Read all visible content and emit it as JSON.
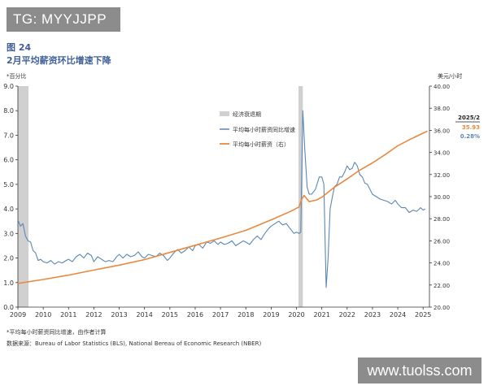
{
  "header": {
    "watermark_top": "TG: MYYJJPP",
    "figure_number": "图 24",
    "figure_title": "2月平均薪资环比增速下降"
  },
  "footer": {
    "footnote": "*平均每小时薪资同比增速，由作者计算",
    "source": "数据来源：Bureau of Labor Statistics (BLS), National Bereau of Economic Research (NBER)",
    "watermark_bottom": "www.tuolss.com"
  },
  "chart_data": {
    "type": "line",
    "left_axis_label": "*百分比",
    "right_axis_label": "美元/小时",
    "left_ylim": [
      0.0,
      9.0
    ],
    "left_ticks": [
      "0.0",
      "1.0",
      "2.0",
      "3.0",
      "4.0",
      "5.0",
      "6.0",
      "7.0",
      "8.0",
      "9.0"
    ],
    "right_ylim": [
      20.0,
      40.0
    ],
    "right_ticks": [
      "20.00",
      "22.00",
      "24.00",
      "26.00",
      "28.00",
      "30.00",
      "32.00",
      "34.00",
      "36.00",
      "38.00",
      "40.00"
    ],
    "xlim": [
      2009.0,
      2025.25
    ],
    "x_ticks": [
      "2009",
      "2010",
      "2011",
      "2012",
      "2013",
      "2014",
      "2015",
      "2016",
      "2017",
      "2018",
      "2019",
      "2020",
      "2021",
      "2022",
      "2023",
      "2024",
      "2025"
    ],
    "recessions": [
      [
        2009.0,
        2009.42
      ],
      [
        2020.08,
        2020.25
      ]
    ],
    "legend": {
      "position": "top-right",
      "items": [
        "经济衰退期",
        "平均每小时薪资同比增速",
        "平均每小时薪资（右）"
      ]
    },
    "series": [
      {
        "name": "平均每小时薪资同比增速",
        "axis": "left",
        "color": "#5b87b5",
        "x": [
          2009.0,
          2009.1,
          2009.2,
          2009.3,
          2009.4,
          2009.5,
          2009.6,
          2009.7,
          2009.8,
          2009.9,
          2010.0,
          2010.15,
          2010.3,
          2010.45,
          2010.6,
          2010.75,
          2010.9,
          2011.0,
          2011.15,
          2011.3,
          2011.45,
          2011.6,
          2011.75,
          2011.9,
          2012.0,
          2012.15,
          2012.3,
          2012.45,
          2012.6,
          2012.75,
          2012.9,
          2013.0,
          2013.15,
          2013.3,
          2013.45,
          2013.6,
          2013.75,
          2013.9,
          2014.0,
          2014.15,
          2014.3,
          2014.45,
          2014.6,
          2014.75,
          2014.9,
          2015.0,
          2015.15,
          2015.3,
          2015.45,
          2015.6,
          2015.75,
          2015.9,
          2016.0,
          2016.15,
          2016.3,
          2016.45,
          2016.6,
          2016.75,
          2016.9,
          2017.0,
          2017.15,
          2017.3,
          2017.45,
          2017.6,
          2017.75,
          2017.9,
          2018.0,
          2018.15,
          2018.3,
          2018.45,
          2018.6,
          2018.75,
          2018.9,
          2019.0,
          2019.15,
          2019.3,
          2019.45,
          2019.6,
          2019.75,
          2019.9,
          2020.0,
          2020.1,
          2020.17,
          2020.25,
          2020.33,
          2020.42,
          2020.5,
          2020.6,
          2020.75,
          2020.9,
          2021.0,
          2021.08,
          2021.17,
          2021.25,
          2021.33,
          2021.42,
          2021.5,
          2021.6,
          2021.7,
          2021.8,
          2021.9,
          2022.0,
          2022.1,
          2022.2,
          2022.3,
          2022.4,
          2022.5,
          2022.6,
          2022.7,
          2022.8,
          2022.9,
          2023.0,
          2023.15,
          2023.3,
          2023.45,
          2023.6,
          2023.75,
          2023.9,
          2024.0,
          2024.15,
          2024.3,
          2024.45,
          2024.6,
          2024.75,
          2024.9,
          2025.0,
          2025.08
        ],
        "values": [
          3.55,
          3.3,
          3.4,
          2.9,
          2.7,
          2.65,
          2.3,
          2.2,
          1.9,
          1.95,
          1.85,
          1.8,
          1.9,
          1.75,
          1.85,
          1.8,
          1.9,
          1.95,
          1.85,
          2.05,
          2.15,
          2.0,
          2.2,
          2.1,
          1.85,
          2.05,
          1.95,
          1.85,
          1.9,
          1.85,
          2.05,
          2.15,
          2.0,
          2.15,
          2.05,
          2.1,
          2.25,
          2.05,
          2.0,
          2.15,
          2.1,
          2.05,
          2.2,
          2.1,
          1.9,
          2.0,
          2.2,
          2.35,
          2.2,
          2.3,
          2.45,
          2.3,
          2.5,
          2.55,
          2.4,
          2.65,
          2.6,
          2.7,
          2.55,
          2.65,
          2.55,
          2.6,
          2.7,
          2.5,
          2.6,
          2.7,
          2.65,
          2.55,
          2.75,
          2.9,
          2.75,
          3.0,
          3.2,
          3.3,
          3.4,
          3.5,
          3.35,
          3.4,
          3.2,
          3.0,
          3.05,
          3.0,
          3.05,
          8.0,
          6.4,
          4.9,
          4.6,
          4.6,
          4.8,
          5.3,
          5.3,
          5.0,
          0.8,
          2.0,
          4.0,
          4.5,
          4.9,
          5.0,
          5.3,
          5.3,
          5.5,
          5.75,
          5.6,
          5.65,
          5.9,
          5.75,
          5.4,
          5.3,
          5.05,
          5.0,
          4.8,
          4.6,
          4.5,
          4.4,
          4.35,
          4.3,
          4.2,
          4.35,
          4.2,
          4.05,
          4.05,
          3.85,
          3.95,
          3.9,
          4.05,
          3.95,
          4.0
        ]
      },
      {
        "name": "平均每小时薪资（右）",
        "axis": "right",
        "color": "#e8893f",
        "x": [
          2009.0,
          2010.0,
          2011.0,
          2012.0,
          2013.0,
          2014.0,
          2015.0,
          2016.0,
          2017.0,
          2018.0,
          2019.0,
          2019.8,
          2020.0,
          2020.1,
          2020.2,
          2020.3,
          2020.5,
          2020.8,
          2021.0,
          2021.5,
          2022.0,
          2022.5,
          2023.0,
          2023.5,
          2024.0,
          2024.5,
          2025.17
        ],
        "values": [
          22.15,
          22.5,
          22.9,
          23.35,
          23.8,
          24.3,
          24.95,
          25.6,
          26.25,
          26.95,
          27.9,
          28.7,
          28.95,
          29.05,
          29.75,
          30.1,
          29.55,
          29.7,
          29.95,
          30.85,
          31.6,
          32.4,
          33.05,
          33.8,
          34.6,
          35.2,
          35.93
        ]
      }
    ],
    "annotation": {
      "date": "2025/2",
      "wage": "35.93",
      "mom": "0.28%",
      "wage_color": "#e8893f",
      "mom_color": "#5b87b5"
    }
  }
}
